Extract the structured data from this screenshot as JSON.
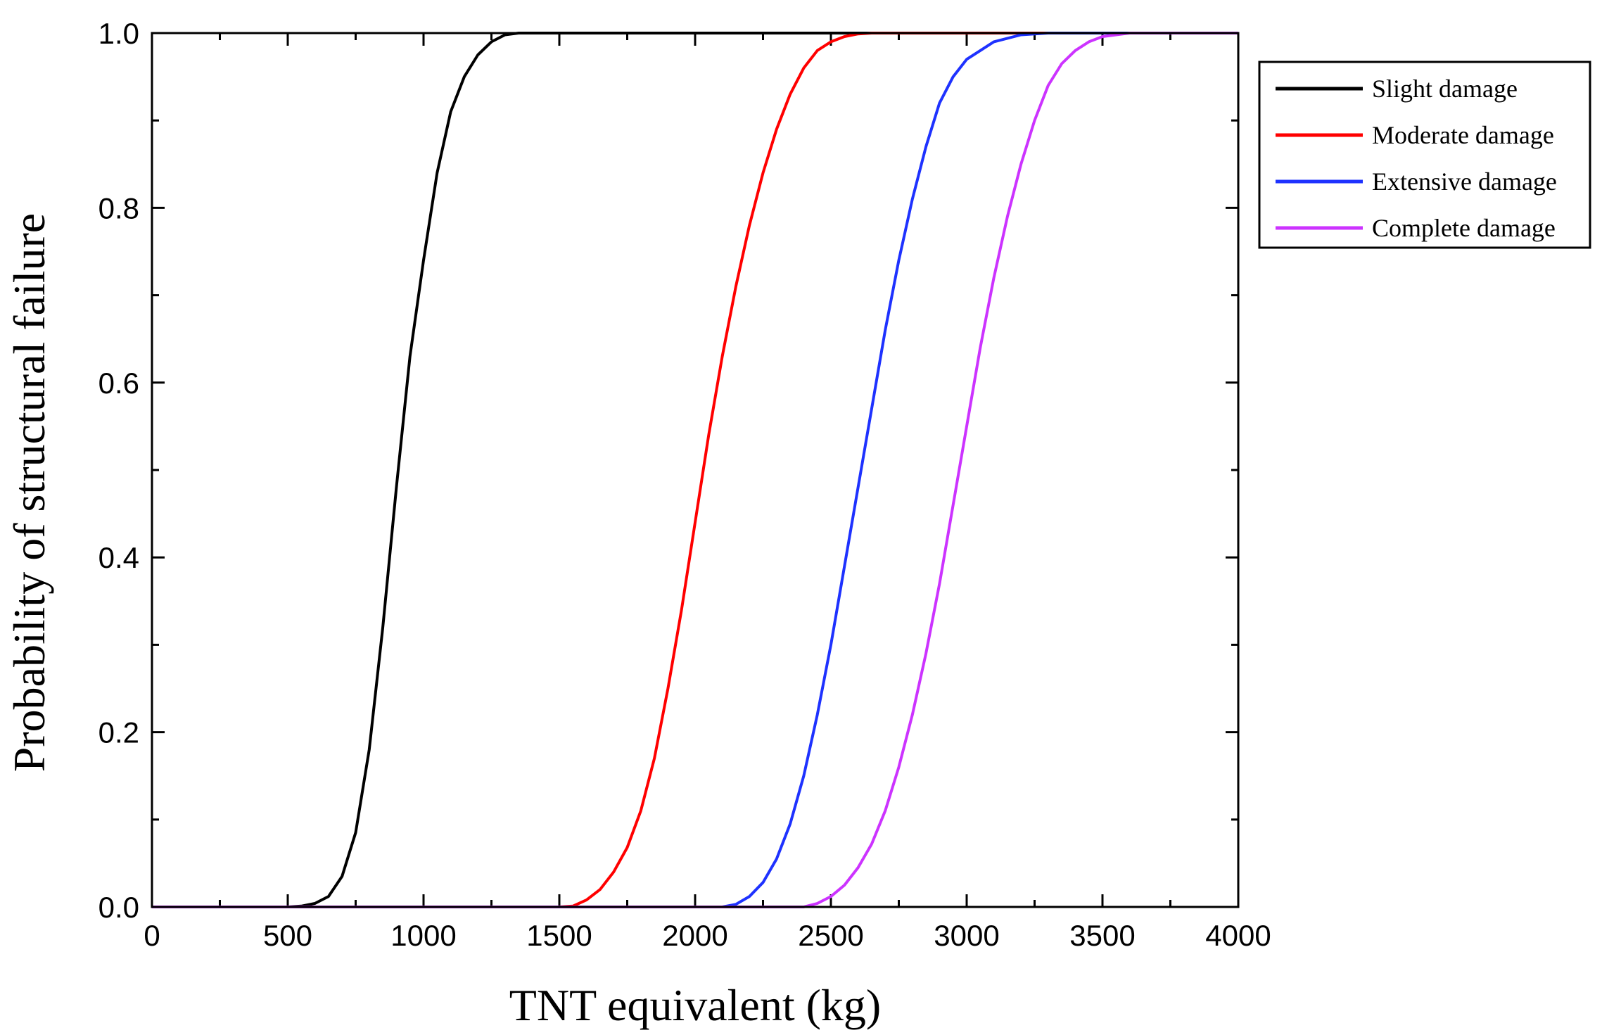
{
  "chart_data": {
    "type": "line",
    "title": "",
    "xlabel": "TNT equivalent (kg)",
    "ylabel": "Probability of structural failure",
    "xlim": [
      0,
      4000
    ],
    "ylim": [
      0,
      1.0
    ],
    "xticks": [
      "0",
      "500",
      "1000",
      "1500",
      "2000",
      "2500",
      "3000",
      "3500",
      "4000"
    ],
    "yticks": [
      "0.0",
      "0.2",
      "0.4",
      "0.6",
      "0.8",
      "1.0"
    ],
    "grid": false,
    "legend_position": "outside-right-top",
    "series": [
      {
        "name": "Slight damage",
        "color": "#000000",
        "points": [
          [
            0,
            0
          ],
          [
            500,
            0
          ],
          [
            550,
            0.001
          ],
          [
            600,
            0.004
          ],
          [
            650,
            0.012
          ],
          [
            700,
            0.035
          ],
          [
            750,
            0.085
          ],
          [
            800,
            0.18
          ],
          [
            850,
            0.32
          ],
          [
            900,
            0.48
          ],
          [
            950,
            0.63
          ],
          [
            1000,
            0.74
          ],
          [
            1050,
            0.84
          ],
          [
            1100,
            0.91
          ],
          [
            1150,
            0.95
          ],
          [
            1200,
            0.975
          ],
          [
            1250,
            0.99
          ],
          [
            1300,
            0.998
          ],
          [
            1350,
            1.0
          ],
          [
            4000,
            1.0
          ]
        ]
      },
      {
        "name": "Moderate damage",
        "color": "#ff0000",
        "points": [
          [
            0,
            0
          ],
          [
            1500,
            0
          ],
          [
            1550,
            0.001
          ],
          [
            1600,
            0.008
          ],
          [
            1650,
            0.02
          ],
          [
            1700,
            0.04
          ],
          [
            1750,
            0.068
          ],
          [
            1800,
            0.11
          ],
          [
            1850,
            0.17
          ],
          [
            1900,
            0.25
          ],
          [
            1950,
            0.34
          ],
          [
            2000,
            0.44
          ],
          [
            2050,
            0.54
          ],
          [
            2100,
            0.63
          ],
          [
            2150,
            0.71
          ],
          [
            2200,
            0.78
          ],
          [
            2250,
            0.84
          ],
          [
            2300,
            0.89
          ],
          [
            2350,
            0.93
          ],
          [
            2400,
            0.96
          ],
          [
            2450,
            0.98
          ],
          [
            2500,
            0.99
          ],
          [
            2550,
            0.996
          ],
          [
            2600,
            0.999
          ],
          [
            2650,
            1.0
          ],
          [
            4000,
            1.0
          ]
        ]
      },
      {
        "name": "Extensive damage",
        "color": "#1e32ff",
        "points": [
          [
            0,
            0
          ],
          [
            2100,
            0
          ],
          [
            2150,
            0.003
          ],
          [
            2200,
            0.012
          ],
          [
            2250,
            0.028
          ],
          [
            2300,
            0.055
          ],
          [
            2350,
            0.095
          ],
          [
            2400,
            0.15
          ],
          [
            2450,
            0.22
          ],
          [
            2500,
            0.3
          ],
          [
            2550,
            0.39
          ],
          [
            2600,
            0.48
          ],
          [
            2650,
            0.57
          ],
          [
            2700,
            0.66
          ],
          [
            2750,
            0.74
          ],
          [
            2800,
            0.81
          ],
          [
            2850,
            0.87
          ],
          [
            2900,
            0.92
          ],
          [
            2950,
            0.95
          ],
          [
            3000,
            0.97
          ],
          [
            3100,
            0.99
          ],
          [
            3200,
            0.998
          ],
          [
            3300,
            1.0
          ],
          [
            4000,
            1.0
          ]
        ]
      },
      {
        "name": "Complete damage",
        "color": "#cc33ff",
        "points": [
          [
            0,
            0
          ],
          [
            2400,
            0
          ],
          [
            2450,
            0.004
          ],
          [
            2500,
            0.012
          ],
          [
            2550,
            0.025
          ],
          [
            2600,
            0.045
          ],
          [
            2650,
            0.072
          ],
          [
            2700,
            0.11
          ],
          [
            2750,
            0.16
          ],
          [
            2800,
            0.22
          ],
          [
            2850,
            0.29
          ],
          [
            2900,
            0.37
          ],
          [
            2950,
            0.46
          ],
          [
            3000,
            0.55
          ],
          [
            3050,
            0.64
          ],
          [
            3100,
            0.72
          ],
          [
            3150,
            0.79
          ],
          [
            3200,
            0.85
          ],
          [
            3250,
            0.9
          ],
          [
            3300,
            0.94
          ],
          [
            3350,
            0.965
          ],
          [
            3400,
            0.98
          ],
          [
            3450,
            0.99
          ],
          [
            3500,
            0.996
          ],
          [
            3600,
            1.0
          ],
          [
            4000,
            1.0
          ]
        ]
      }
    ]
  }
}
